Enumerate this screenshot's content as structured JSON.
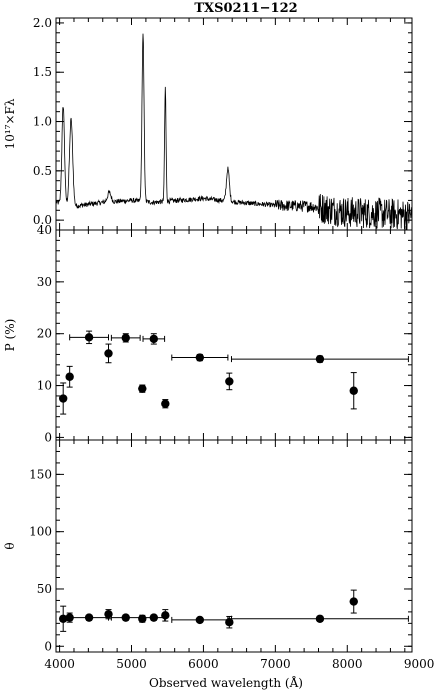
{
  "chart_data": {
    "title": "TXS0211−122",
    "xlabel": "Observed wavelength (Å)",
    "x_ticks": [
      "4000",
      "5000",
      "6000",
      "7000",
      "8000",
      "9000"
    ],
    "xlim": [
      3950,
      8900
    ],
    "panels": [
      {
        "id": "flux",
        "type": "line",
        "ylabel": "10¹⁷×Fλ",
        "ylim": [
          -0.1,
          2.05
        ],
        "y_ticks": [
          "0.0",
          "0.5",
          "1.0",
          "1.5",
          "2.0"
        ],
        "y_tick_values": [
          0.0,
          0.5,
          1.0,
          1.5,
          2.0
        ],
        "continuum": [
          [
            3950,
            0.18
          ],
          [
            4200,
            0.14
          ],
          [
            4600,
            0.18
          ],
          [
            5000,
            0.2
          ],
          [
            5300,
            0.18
          ],
          [
            6000,
            0.22
          ],
          [
            6500,
            0.18
          ],
          [
            7000,
            0.15
          ],
          [
            7500,
            0.14
          ],
          [
            8000,
            0.08
          ],
          [
            8400,
            0.07
          ],
          [
            8900,
            0.05
          ]
        ],
        "lines": [
          {
            "center": 4050,
            "peak": 1.16,
            "width": 18
          },
          {
            "center": 4160,
            "peak": 1.02,
            "width": 22
          },
          {
            "center": 4690,
            "peak": 0.28,
            "width": 25
          },
          {
            "center": 5160,
            "peak": 1.88,
            "width": 14
          },
          {
            "center": 5470,
            "peak": 1.35,
            "width": 10
          },
          {
            "center": 6340,
            "peak": 0.52,
            "width": 20
          }
        ]
      },
      {
        "id": "polarization",
        "type": "scatter",
        "ylabel": "P (%)",
        "ylim": [
          -0.5,
          40
        ],
        "y_ticks": [
          "0",
          "10",
          "20",
          "30",
          "40"
        ],
        "y_tick_values": [
          0,
          10,
          20,
          30,
          40
        ],
        "points": [
          {
            "x": 4050,
            "y": 7.5,
            "yerr": 3.0,
            "xerr": 0
          },
          {
            "x": 4140,
            "y": 11.7,
            "yerr": 2.0,
            "xerr": 0
          },
          {
            "x": 4410,
            "y": 19.3,
            "yerr": 1.2,
            "xerr": 270
          },
          {
            "x": 4680,
            "y": 16.2,
            "yerr": 1.8,
            "xerr": 0
          },
          {
            "x": 4920,
            "y": 19.2,
            "yerr": 0.8,
            "xerr": 200
          },
          {
            "x": 5150,
            "y": 9.4,
            "yerr": 0.7,
            "xerr": 0
          },
          {
            "x": 5310,
            "y": 19.0,
            "yerr": 1.0,
            "xerr": 150
          },
          {
            "x": 5470,
            "y": 6.5,
            "yerr": 0.8,
            "xerr": 0
          },
          {
            "x": 5950,
            "y": 15.4,
            "yerr": 0.6,
            "xerr": 390
          },
          {
            "x": 6360,
            "y": 10.8,
            "yerr": 1.6,
            "xerr": 0
          },
          {
            "x": 7620,
            "y": 15.1,
            "yerr": 0.6,
            "xerr": 1230
          },
          {
            "x": 8090,
            "y": 9.0,
            "yerr": 3.5,
            "xerr": 0
          }
        ]
      },
      {
        "id": "angle",
        "type": "scatter",
        "ylabel": "θ",
        "ylim": [
          -5,
          180
        ],
        "y_ticks": [
          "0",
          "50",
          "100",
          "150"
        ],
        "y_tick_values": [
          0,
          50,
          100,
          150
        ],
        "points": [
          {
            "x": 4050,
            "y": 24,
            "yerr": 11,
            "xerr": 0
          },
          {
            "x": 4140,
            "y": 25,
            "yerr": 4,
            "xerr": 0
          },
          {
            "x": 4410,
            "y": 25,
            "yerr": 2,
            "xerr": 270
          },
          {
            "x": 4680,
            "y": 28,
            "yerr": 4,
            "xerr": 0
          },
          {
            "x": 4920,
            "y": 25,
            "yerr": 2,
            "xerr": 200
          },
          {
            "x": 5150,
            "y": 24,
            "yerr": 3,
            "xerr": 0
          },
          {
            "x": 5310,
            "y": 25,
            "yerr": 2,
            "xerr": 150
          },
          {
            "x": 5470,
            "y": 27,
            "yerr": 5,
            "xerr": 0
          },
          {
            "x": 5950,
            "y": 23,
            "yerr": 1,
            "xerr": 390
          },
          {
            "x": 6360,
            "y": 21,
            "yerr": 5,
            "xerr": 0
          },
          {
            "x": 7620,
            "y": 24,
            "yerr": 1,
            "xerr": 1230
          },
          {
            "x": 8090,
            "y": 39,
            "yerr": 10,
            "xerr": 0
          }
        ]
      }
    ]
  }
}
